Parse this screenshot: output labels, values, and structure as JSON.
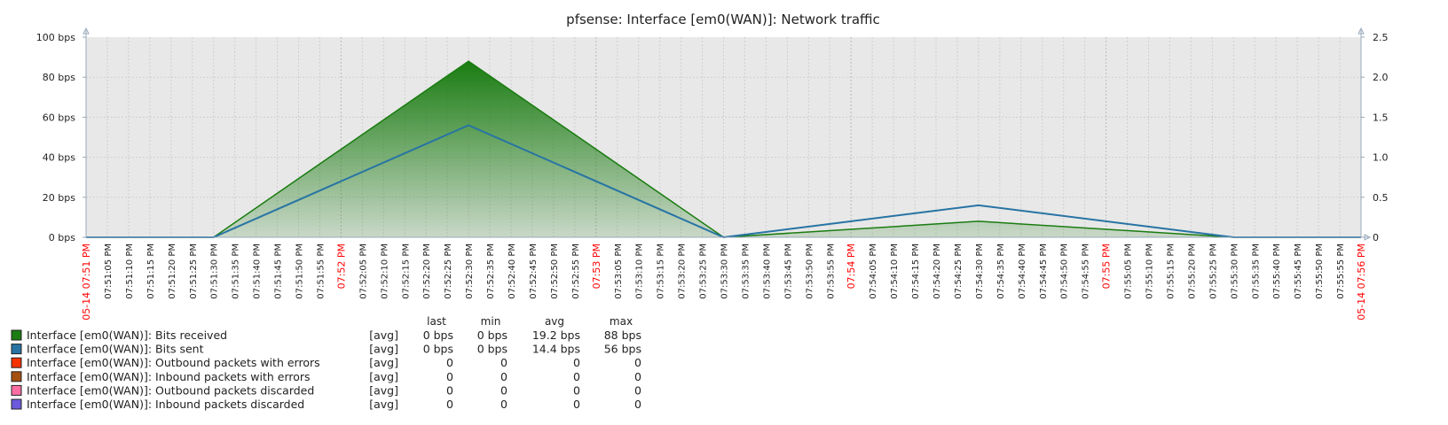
{
  "chart_data": {
    "type": "area",
    "title": "pfsense: Interface [em0(WAN)]: Network traffic",
    "y_left": {
      "ticks": [
        0,
        20,
        40,
        60,
        80,
        100
      ],
      "tick_labels": [
        "0 bps",
        "20 bps",
        "40 bps",
        "60 bps",
        "80 bps",
        "100 bps"
      ],
      "range": [
        0,
        100
      ]
    },
    "y_right": {
      "ticks": [
        0,
        0.5,
        1.0,
        1.5,
        2.0,
        2.5
      ],
      "tick_labels": [
        "0",
        "0.5",
        "1.0",
        "1.5",
        "2.0",
        "2.5"
      ],
      "range": [
        0,
        2.5
      ]
    },
    "x_time": {
      "start_minutes": 0,
      "end_minutes": 5,
      "edge_labels": [
        "05-14 07:51 PM",
        "05-14 07:56 PM"
      ],
      "tick_labels": [
        "05-14 07:51 PM",
        "07:51:05 PM",
        "07:51:10 PM",
        "07:51:15 PM",
        "07:51:20 PM",
        "07:51:25 PM",
        "07:51:30 PM",
        "07:51:35 PM",
        "07:51:40 PM",
        "07:51:45 PM",
        "07:51:50 PM",
        "07:51:55 PM",
        "07:52 PM",
        "07:52:05 PM",
        "07:52:10 PM",
        "07:52:15 PM",
        "07:52:20 PM",
        "07:52:25 PM",
        "07:52:30 PM",
        "07:52:35 PM",
        "07:52:40 PM",
        "07:52:45 PM",
        "07:52:50 PM",
        "07:52:55 PM",
        "07:53 PM",
        "07:53:05 PM",
        "07:53:10 PM",
        "07:53:15 PM",
        "07:53:20 PM",
        "07:53:25 PM",
        "07:53:30 PM",
        "07:53:35 PM",
        "07:53:40 PM",
        "07:53:45 PM",
        "07:53:50 PM",
        "07:53:55 PM",
        "07:54 PM",
        "07:54:05 PM",
        "07:54:10 PM",
        "07:54:15 PM",
        "07:54:20 PM",
        "07:54:25 PM",
        "07:54:30 PM",
        "07:54:35 PM",
        "07:54:40 PM",
        "07:54:45 PM",
        "07:54:50 PM",
        "07:54:55 PM",
        "07:55 PM",
        "07:55:05 PM",
        "07:55:10 PM",
        "07:55:15 PM",
        "07:55:20 PM",
        "07:55:25 PM",
        "07:55:30 PM",
        "07:55:35 PM",
        "07:55:40 PM",
        "07:55:45 PM",
        "07:55:50 PM",
        "07:55:55 PM",
        "05-14 07:56 PM"
      ],
      "major_labels": [
        "05-14 07:51 PM",
        "07:52 PM",
        "07:53 PM",
        "07:54 PM",
        "07:55 PM",
        "05-14 07:56 PM"
      ]
    },
    "series": [
      {
        "name": "Interface [em0(WAN)]: Bits received",
        "style": "filled-area",
        "color": "#1a7c11",
        "points": [
          [
            0,
            0
          ],
          [
            0.5,
            0
          ],
          [
            1.5,
            88
          ],
          [
            2.5,
            0
          ],
          [
            3.5,
            8
          ],
          [
            4.5,
            0
          ],
          [
            5,
            0
          ]
        ]
      },
      {
        "name": "Interface [em0(WAN)]: Bits sent",
        "style": "line",
        "color": "#2774a4",
        "points": [
          [
            0,
            0
          ],
          [
            0.5,
            0
          ],
          [
            1.5,
            56
          ],
          [
            2.5,
            0
          ],
          [
            3.5,
            16
          ],
          [
            4.5,
            0
          ],
          [
            5,
            0
          ]
        ]
      }
    ],
    "grid": true,
    "legend_position": "bottom-left"
  },
  "legend": {
    "headers": {
      "last": "last",
      "min": "min",
      "avg": "avg",
      "max": "max"
    },
    "rows": [
      {
        "name": "Interface [em0(WAN)]: Bits received",
        "color": "#1a7c11",
        "func": "[avg]",
        "last": "0 bps",
        "min": "0 bps",
        "avg": "19.2 bps",
        "max": "88 bps"
      },
      {
        "name": "Interface [em0(WAN)]: Bits sent",
        "color": "#2774a4",
        "func": "[avg]",
        "last": "0 bps",
        "min": "0 bps",
        "avg": "14.4 bps",
        "max": "56 bps"
      },
      {
        "name": "Interface [em0(WAN)]: Outbound packets with errors",
        "color": "#f63100",
        "func": "[avg]",
        "last": "0",
        "min": "0",
        "avg": "0",
        "max": "0"
      },
      {
        "name": "Interface [em0(WAN)]: Inbound packets with errors",
        "color": "#a54f10",
        "func": "[avg]",
        "last": "0",
        "min": "0",
        "avg": "0",
        "max": "0"
      },
      {
        "name": "Interface [em0(WAN)]: Outbound packets discarded",
        "color": "#fc6ea3",
        "func": "[avg]",
        "last": "0",
        "min": "0",
        "avg": "0",
        "max": "0"
      },
      {
        "name": "Interface [em0(WAN)]: Inbound packets discarded",
        "color": "#6c59dc",
        "func": "[avg]",
        "last": "0",
        "min": "0",
        "avg": "0",
        "max": "0"
      }
    ]
  },
  "colors": {
    "plot_background": "#e8e8e8",
    "grid": "#cfcfcf",
    "axis": "#9ab",
    "major_label": "#ff0000",
    "text": "#222222"
  }
}
